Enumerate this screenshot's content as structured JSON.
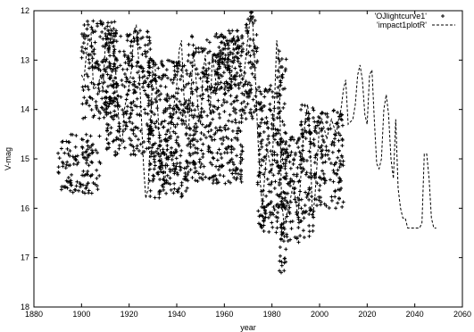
{
  "chart_data": {
    "type": "scatter",
    "xlabel": "year",
    "ylabel": "V-mag",
    "xlim": [
      1880,
      2060
    ],
    "ylim": [
      12,
      18
    ],
    "y_inverted": true,
    "x_ticks": [
      1880,
      1900,
      1920,
      1940,
      1960,
      1980,
      2000,
      2020,
      2040,
      2060
    ],
    "y_ticks": [
      12,
      13,
      14,
      15,
      16,
      17,
      18
    ],
    "grid": false,
    "legend_position": "top-right",
    "series": [
      {
        "name": "'OJlightcurve1'",
        "style": "points",
        "marker": "+",
        "color": "#000000",
        "clusters": [
          {
            "x": [
              1890,
              1908
            ],
            "y": [
              14.5,
              15.7
            ]
          },
          {
            "x": [
              1900,
              1915
            ],
            "y": [
              12.2,
              14.2
            ]
          },
          {
            "x": [
              1910,
              1930
            ],
            "y": [
              12.4,
              15.0
            ]
          },
          {
            "x": [
              1928,
              1945
            ],
            "y": [
              13.0,
              15.8
            ]
          },
          {
            "x": [
              1932,
              1940
            ],
            "y": [
              14.4,
              15.4
            ]
          },
          {
            "x": [
              1945,
              1968
            ],
            "y": [
              12.5,
              15.5
            ]
          },
          {
            "x": [
              1956,
              1966
            ],
            "y": [
              12.4,
              13.6
            ]
          },
          {
            "x": [
              1968,
              1974
            ],
            "y": [
              12.0,
              14.2
            ]
          },
          {
            "x": [
              1974,
              1983
            ],
            "y": [
              13.5,
              16.5
            ]
          },
          {
            "x": [
              1982,
              1986
            ],
            "y": [
              12.8,
              16.0
            ]
          },
          {
            "x": [
              1983,
              1992
            ],
            "y": [
              14.5,
              16.7
            ]
          },
          {
            "x": [
              1983,
              1986
            ],
            "y": [
              16.5,
              17.4
            ]
          },
          {
            "x": [
              1992,
              1998
            ],
            "y": [
              13.9,
              16.6
            ]
          },
          {
            "x": [
              1998,
              2010
            ],
            "y": [
              14.0,
              16.0
            ]
          }
        ]
      },
      {
        "name": "'impact1plotR'",
        "style": "dashed-line",
        "color": "#000000",
        "points": [
          [
            1900,
            13.3
          ],
          [
            1901,
            13.4
          ],
          [
            1902,
            12.9
          ],
          [
            1903,
            12.5
          ],
          [
            1904,
            12.45
          ],
          [
            1905,
            13.6
          ],
          [
            1907,
            13.5
          ],
          [
            1908,
            13.3
          ],
          [
            1909,
            13.6
          ],
          [
            1910,
            12.7
          ],
          [
            1912,
            12.3
          ],
          [
            1913,
            12.6
          ],
          [
            1914,
            13.0
          ],
          [
            1915,
            13.7
          ],
          [
            1916,
            14.5
          ],
          [
            1917,
            14.7
          ],
          [
            1918,
            14.0
          ],
          [
            1920,
            13.5
          ],
          [
            1921,
            13.2
          ],
          [
            1922,
            12.4
          ],
          [
            1923,
            12.3
          ],
          [
            1924,
            13.0
          ],
          [
            1925,
            14.0
          ],
          [
            1926,
            15.1
          ],
          [
            1927,
            15.8
          ],
          [
            1928,
            15.6
          ],
          [
            1929,
            14.4
          ],
          [
            1930,
            13.0
          ],
          [
            1931,
            13.2
          ],
          [
            1933,
            14.8
          ],
          [
            1935,
            15.5
          ],
          [
            1936,
            14.7
          ],
          [
            1937,
            14.5
          ],
          [
            1938,
            14.2
          ],
          [
            1940,
            13.5
          ],
          [
            1941,
            12.8
          ],
          [
            1942,
            12.6
          ],
          [
            1943,
            13.7
          ],
          [
            1944,
            14.3
          ],
          [
            1945,
            14.4
          ],
          [
            1946,
            13.6
          ],
          [
            1947,
            12.8
          ],
          [
            1948,
            13.3
          ],
          [
            1949,
            14.0
          ],
          [
            1950,
            14.3
          ],
          [
            1951,
            13.3
          ],
          [
            1952,
            12.9
          ],
          [
            1953,
            13.6
          ],
          [
            1954,
            14.1
          ],
          [
            1955,
            12.9
          ],
          [
            1956,
            13.3
          ],
          [
            1957,
            13.6
          ],
          [
            1958,
            12.9
          ],
          [
            1959,
            13.1
          ],
          [
            1960,
            12.7
          ],
          [
            1961,
            12.6
          ],
          [
            1962,
            13.2
          ],
          [
            1963,
            13.4
          ],
          [
            1964,
            12.5
          ],
          [
            1966,
            13.1
          ],
          [
            1968,
            13.4
          ],
          [
            1970,
            12.5
          ],
          [
            1971,
            12.1
          ],
          [
            1972,
            12.3
          ],
          [
            1973,
            13.3
          ],
          [
            1974,
            14.5
          ],
          [
            1975,
            15.4
          ],
          [
            1976,
            16.0
          ],
          [
            1977,
            15.3
          ],
          [
            1978,
            14.8
          ],
          [
            1980,
            15.3
          ],
          [
            1982,
            12.6
          ],
          [
            1983,
            13.0
          ],
          [
            1984,
            15.8
          ],
          [
            1985,
            16.3
          ],
          [
            1987,
            16.0
          ],
          [
            1989,
            15.5
          ],
          [
            1991,
            16.2
          ],
          [
            1993,
            14.7
          ],
          [
            1994,
            14.2
          ],
          [
            1995,
            13.9
          ],
          [
            1996,
            14.5
          ],
          [
            1997,
            16.2
          ],
          [
            1998,
            15.8
          ],
          [
            2000,
            14.3
          ],
          [
            2001,
            14.2
          ],
          [
            2003,
            14.6
          ],
          [
            2005,
            14.2
          ],
          [
            2007,
            14.5
          ],
          [
            2008,
            14.2
          ],
          [
            2009,
            14.0
          ],
          [
            2010,
            13.6
          ],
          [
            2011,
            13.4
          ],
          [
            2012,
            14.3
          ],
          [
            2014,
            14.2
          ],
          [
            2015,
            13.9
          ],
          [
            2016,
            13.3
          ],
          [
            2017,
            13.1
          ],
          [
            2018,
            13.4
          ],
          [
            2019,
            14.1
          ],
          [
            2020,
            14.3
          ],
          [
            2021,
            13.3
          ],
          [
            2022,
            13.2
          ],
          [
            2023,
            14.2
          ],
          [
            2024,
            15.1
          ],
          [
            2025,
            15.2
          ],
          [
            2026,
            15.0
          ],
          [
            2027,
            14.0
          ],
          [
            2028,
            13.7
          ],
          [
            2029,
            14.1
          ],
          [
            2030,
            15.0
          ],
          [
            2031,
            15.4
          ],
          [
            2032,
            14.2
          ],
          [
            2033,
            15.6
          ],
          [
            2034,
            16.0
          ],
          [
            2035,
            16.2
          ],
          [
            2036,
            16.2
          ],
          [
            2037,
            16.4
          ],
          [
            2038,
            16.4
          ],
          [
            2039,
            16.4
          ],
          [
            2040,
            16.4
          ],
          [
            2041,
            16.4
          ],
          [
            2042,
            16.4
          ],
          [
            2043,
            16.3
          ],
          [
            2044,
            14.9
          ],
          [
            2045,
            14.9
          ],
          [
            2046,
            15.4
          ],
          [
            2047,
            16.2
          ],
          [
            2048,
            16.4
          ],
          [
            2049,
            16.4
          ]
        ]
      }
    ]
  }
}
